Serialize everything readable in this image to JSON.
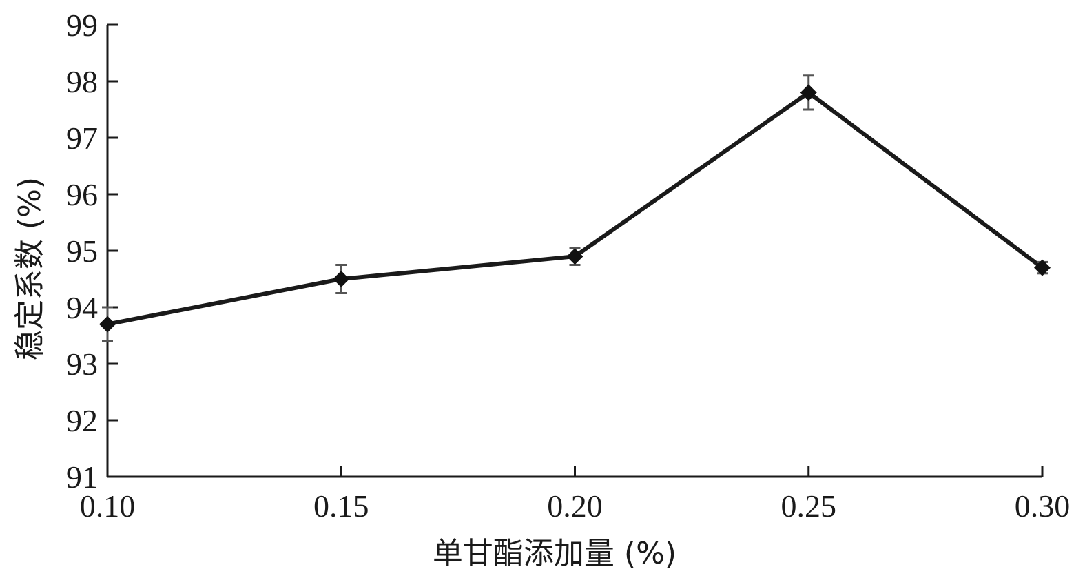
{
  "chart_data": {
    "type": "line",
    "xlabel": "单甘酯添加量 (%)",
    "ylabel": "稳定系数 (%)",
    "xlim": [
      0.1,
      0.3
    ],
    "ylim": [
      91,
      99
    ],
    "x_ticks": [
      "0.10",
      "0.15",
      "0.20",
      "0.25",
      "0.30"
    ],
    "y_ticks": [
      "91",
      "92",
      "93",
      "94",
      "95",
      "96",
      "97",
      "98",
      "99"
    ],
    "grid": false,
    "series": [
      {
        "x": [
          0.1,
          0.15,
          0.2,
          0.25,
          0.3
        ],
        "values": [
          93.7,
          94.5,
          94.9,
          97.8,
          94.7
        ],
        "error": [
          0.3,
          0.25,
          0.15,
          0.3,
          0.1
        ]
      }
    ],
    "marker": "diamond",
    "color": "#1a1a1a"
  }
}
